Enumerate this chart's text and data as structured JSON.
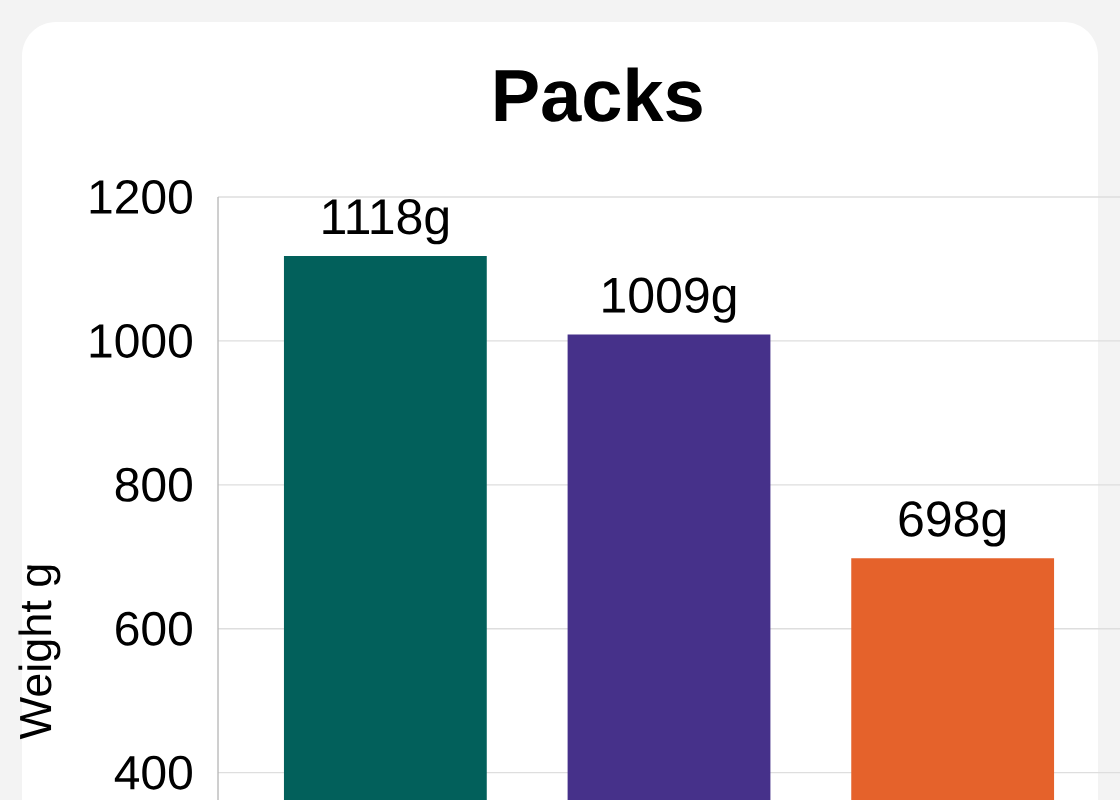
{
  "chart_data": {
    "type": "bar",
    "title": "Packs",
    "ylabel": "Weight g",
    "categories": [
      null,
      null,
      null
    ],
    "values": [
      1118,
      1009,
      698
    ],
    "colors": [
      "#02605b",
      "#46318a",
      "#e5622b"
    ],
    "value_labels": [
      "1118g",
      "1009g",
      "698g"
    ],
    "ylim": [
      362,
      1200
    ],
    "yticks": [
      400,
      600,
      800,
      1000,
      1200
    ],
    "grid": "y"
  }
}
